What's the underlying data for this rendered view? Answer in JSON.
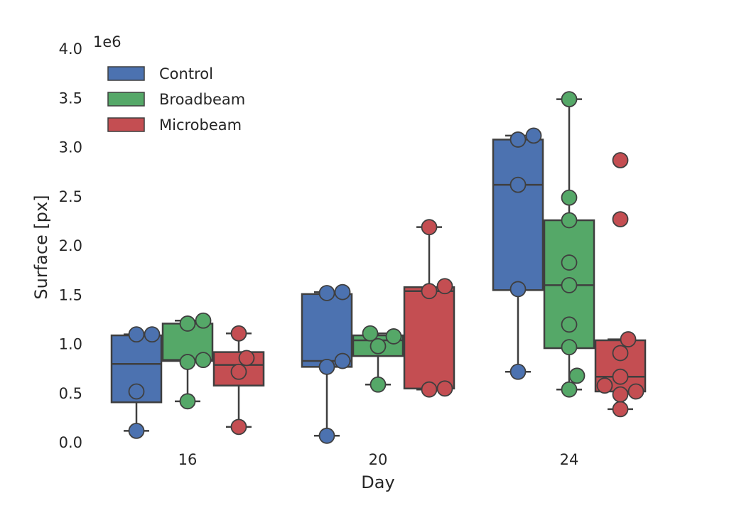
{
  "chart_data": {
    "type": "box",
    "xlabel": "Day",
    "ylabel": "Surface [px]",
    "y_offset_label": "1e6",
    "y_scale": 1000000,
    "ylim": [
      0,
      4.0
    ],
    "y_ticks": [
      "0.0",
      "0.5",
      "1.0",
      "1.5",
      "2.0",
      "2.5",
      "3.0",
      "3.5",
      "4.0"
    ],
    "categories": [
      "16",
      "20",
      "24"
    ],
    "grid": false,
    "legend_position": "top-left",
    "series": [
      {
        "name": "Control",
        "color": "#4c72b0",
        "boxes": [
          {
            "q1": 0.41,
            "median": 0.8,
            "q3": 1.09,
            "whisker_low": 0.12,
            "whisker_high": 1.1,
            "points": [
              0.12,
              0.52,
              1.1,
              1.1
            ]
          },
          {
            "q1": 0.77,
            "median": 0.83,
            "q3": 1.51,
            "whisker_low": 0.07,
            "whisker_high": 1.53,
            "points": [
              0.07,
              0.77,
              0.83,
              1.52,
              1.53
            ]
          },
          {
            "q1": 1.55,
            "median": 2.62,
            "q3": 3.08,
            "whisker_low": 0.72,
            "whisker_high": 3.12,
            "points": [
              0.72,
              1.56,
              2.62,
              3.08,
              3.12
            ]
          }
        ]
      },
      {
        "name": "Broadbeam",
        "color": "#55a868",
        "boxes": [
          {
            "q1": 0.83,
            "median": 0.84,
            "q3": 1.21,
            "whisker_low": 0.42,
            "whisker_high": 1.24,
            "points": [
              0.42,
              0.82,
              0.84,
              1.21,
              1.24
            ]
          },
          {
            "q1": 0.88,
            "median": 1.04,
            "q3": 1.09,
            "whisker_low": 0.59,
            "whisker_high": 1.11,
            "points": [
              0.59,
              0.98,
              1.08,
              1.11
            ]
          },
          {
            "q1": 0.96,
            "median": 1.6,
            "q3": 2.26,
            "whisker_low": 0.54,
            "whisker_high": 3.49,
            "points": [
              0.54,
              0.68,
              0.97,
              1.2,
              1.6,
              1.83,
              2.26,
              2.49,
              3.49
            ]
          }
        ]
      },
      {
        "name": "Microbeam",
        "color": "#c44e52",
        "boxes": [
          {
            "q1": 0.58,
            "median": 0.79,
            "q3": 0.92,
            "whisker_low": 0.16,
            "whisker_high": 1.11,
            "points": [
              0.16,
              0.72,
              0.86,
              1.11
            ]
          },
          {
            "q1": 0.55,
            "median": 1.54,
            "q3": 1.58,
            "whisker_low": 0.54,
            "whisker_high": 2.19,
            "points": [
              0.54,
              0.55,
              1.54,
              1.59,
              2.19
            ]
          },
          {
            "q1": 0.52,
            "median": 0.67,
            "q3": 1.04,
            "whisker_low": 0.34,
            "whisker_high": 1.05,
            "points": [
              0.34,
              0.49,
              0.52,
              0.58,
              0.67,
              0.91,
              1.05,
              2.27,
              2.87
            ]
          }
        ]
      }
    ]
  }
}
